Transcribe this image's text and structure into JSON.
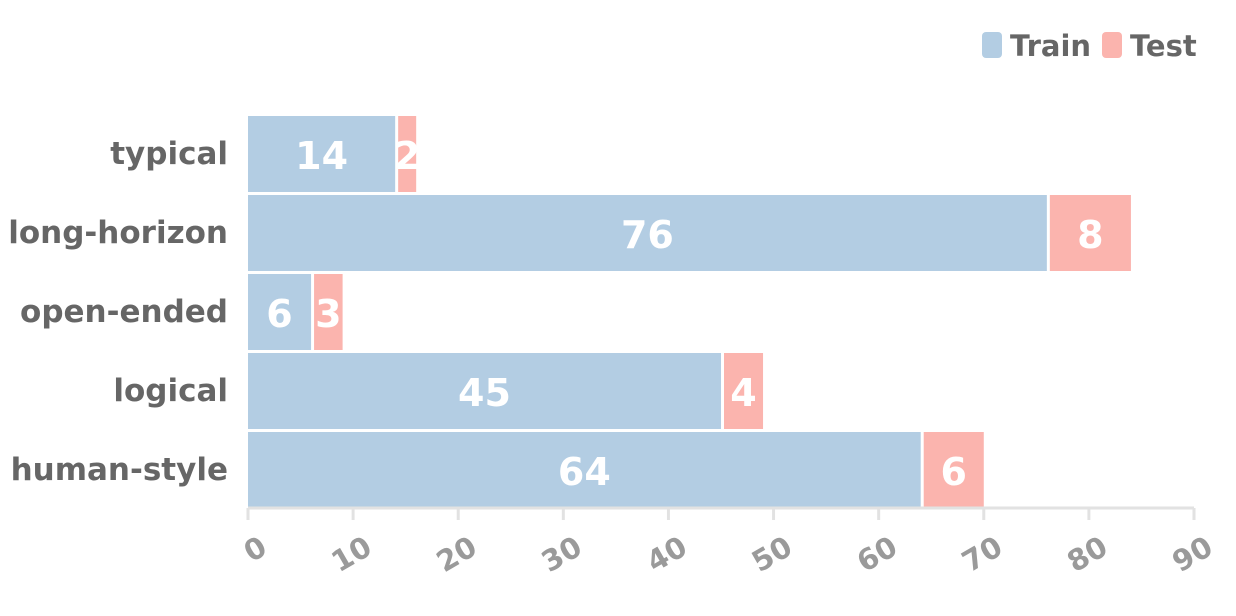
{
  "chart_data": {
    "type": "bar",
    "orientation": "horizontal",
    "stacked": true,
    "categories": [
      "typical",
      "long-horizon",
      "open-ended",
      "logical",
      "human-style"
    ],
    "series": [
      {
        "name": "Train",
        "color": "#b3cde3",
        "values": [
          14,
          76,
          6,
          45,
          64
        ]
      },
      {
        "name": "Test",
        "color": "#fbb4ae",
        "values": [
          2,
          8,
          3,
          4,
          6
        ]
      }
    ],
    "xlim": [
      0,
      90
    ],
    "xticks": [
      0,
      10,
      20,
      30,
      40,
      50,
      60,
      70,
      80,
      90
    ],
    "title": "",
    "xlabel": "",
    "ylabel": "",
    "grid": false,
    "legend_position": "top-right",
    "data_labels": true
  }
}
